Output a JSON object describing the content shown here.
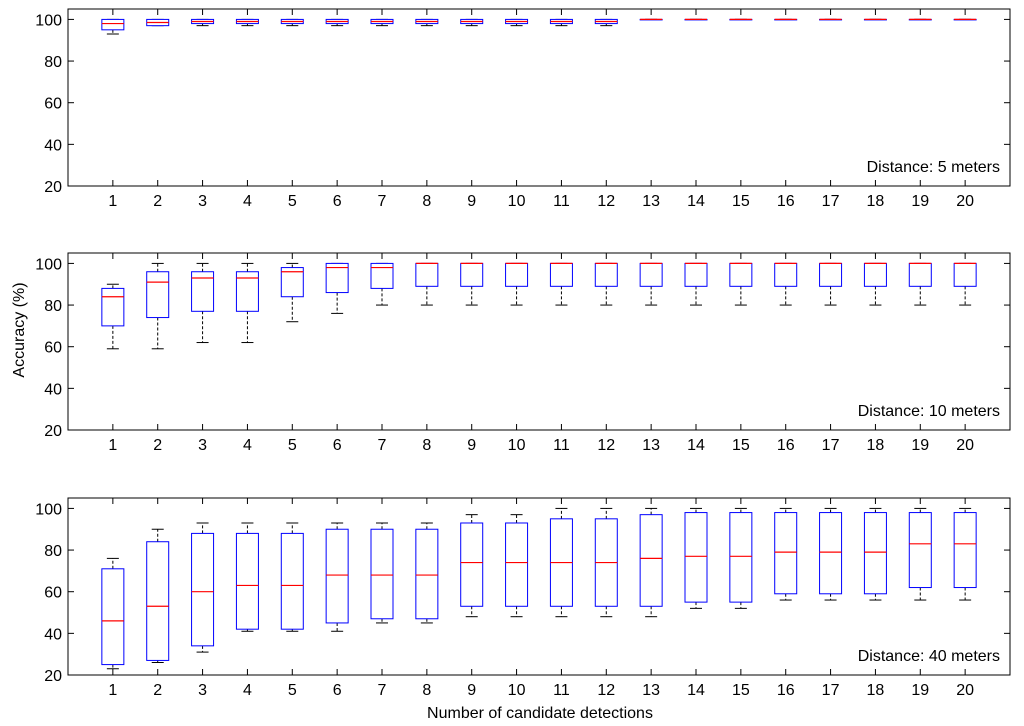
{
  "figure": {
    "ylabel": "Accuracy (%)",
    "xlabel": "Number of candidate detections"
  },
  "colors": {
    "box": "#0000ff",
    "median": "#ff0000",
    "whisker": "#000000",
    "axis": "#000000"
  },
  "chart_data": [
    {
      "type": "box",
      "annotation": "Distance: 5 meters",
      "categories": [
        "1",
        "2",
        "3",
        "4",
        "5",
        "6",
        "7",
        "8",
        "9",
        "10",
        "11",
        "12",
        "13",
        "14",
        "15",
        "16",
        "17",
        "18",
        "19",
        "20"
      ],
      "ylim": [
        20,
        105
      ],
      "yticks": [
        "20",
        "40",
        "60",
        "80",
        "100"
      ],
      "grid": false,
      "boxes": [
        {
          "min": 93,
          "q1": 95,
          "median": 98,
          "q3": 100,
          "max": 100
        },
        {
          "min": 97,
          "q1": 97,
          "median": 98.5,
          "q3": 100,
          "max": 100
        },
        {
          "min": 97,
          "q1": 98,
          "median": 99,
          "q3": 100,
          "max": 100
        },
        {
          "min": 97,
          "q1": 98,
          "median": 99,
          "q3": 100,
          "max": 100
        },
        {
          "min": 97,
          "q1": 98,
          "median": 99,
          "q3": 100,
          "max": 100
        },
        {
          "min": 97,
          "q1": 98,
          "median": 99,
          "q3": 100,
          "max": 100
        },
        {
          "min": 97,
          "q1": 98,
          "median": 99,
          "q3": 100,
          "max": 100
        },
        {
          "min": 97,
          "q1": 98,
          "median": 99,
          "q3": 100,
          "max": 100
        },
        {
          "min": 97,
          "q1": 98,
          "median": 99,
          "q3": 100,
          "max": 100
        },
        {
          "min": 97,
          "q1": 98,
          "median": 99,
          "q3": 100,
          "max": 100
        },
        {
          "min": 97,
          "q1": 98,
          "median": 99,
          "q3": 100,
          "max": 100
        },
        {
          "min": 97,
          "q1": 98,
          "median": 99,
          "q3": 100,
          "max": 100
        },
        {
          "min": 100,
          "q1": 100,
          "median": 100,
          "q3": 100,
          "max": 100
        },
        {
          "min": 100,
          "q1": 100,
          "median": 100,
          "q3": 100,
          "max": 100
        },
        {
          "min": 100,
          "q1": 100,
          "median": 100,
          "q3": 100,
          "max": 100
        },
        {
          "min": 100,
          "q1": 100,
          "median": 100,
          "q3": 100,
          "max": 100
        },
        {
          "min": 100,
          "q1": 100,
          "median": 100,
          "q3": 100,
          "max": 100
        },
        {
          "min": 100,
          "q1": 100,
          "median": 100,
          "q3": 100,
          "max": 100
        },
        {
          "min": 100,
          "q1": 100,
          "median": 100,
          "q3": 100,
          "max": 100
        },
        {
          "min": 100,
          "q1": 100,
          "median": 100,
          "q3": 100,
          "max": 100
        }
      ]
    },
    {
      "type": "box",
      "annotation": "Distance: 10 meters",
      "categories": [
        "1",
        "2",
        "3",
        "4",
        "5",
        "6",
        "7",
        "8",
        "9",
        "10",
        "11",
        "12",
        "13",
        "14",
        "15",
        "16",
        "17",
        "18",
        "19",
        "20"
      ],
      "ylim": [
        20,
        105
      ],
      "yticks": [
        "20",
        "40",
        "60",
        "80",
        "100"
      ],
      "grid": false,
      "boxes": [
        {
          "min": 59,
          "q1": 70,
          "median": 84,
          "q3": 88,
          "max": 90
        },
        {
          "min": 59,
          "q1": 74,
          "median": 91,
          "q3": 96,
          "max": 100
        },
        {
          "min": 62,
          "q1": 77,
          "median": 93,
          "q3": 96,
          "max": 100
        },
        {
          "min": 62,
          "q1": 77,
          "median": 93,
          "q3": 96,
          "max": 100
        },
        {
          "min": 72,
          "q1": 84,
          "median": 96,
          "q3": 98,
          "max": 100
        },
        {
          "min": 76,
          "q1": 86,
          "median": 98,
          "q3": 100,
          "max": 100
        },
        {
          "min": 80,
          "q1": 88,
          "median": 98,
          "q3": 100,
          "max": 100
        },
        {
          "min": 80,
          "q1": 89,
          "median": 100,
          "q3": 100,
          "max": 100
        },
        {
          "min": 80,
          "q1": 89,
          "median": 100,
          "q3": 100,
          "max": 100
        },
        {
          "min": 80,
          "q1": 89,
          "median": 100,
          "q3": 100,
          "max": 100
        },
        {
          "min": 80,
          "q1": 89,
          "median": 100,
          "q3": 100,
          "max": 100
        },
        {
          "min": 80,
          "q1": 89,
          "median": 100,
          "q3": 100,
          "max": 100
        },
        {
          "min": 80,
          "q1": 89,
          "median": 100,
          "q3": 100,
          "max": 100
        },
        {
          "min": 80,
          "q1": 89,
          "median": 100,
          "q3": 100,
          "max": 100
        },
        {
          "min": 80,
          "q1": 89,
          "median": 100,
          "q3": 100,
          "max": 100
        },
        {
          "min": 80,
          "q1": 89,
          "median": 100,
          "q3": 100,
          "max": 100
        },
        {
          "min": 80,
          "q1": 89,
          "median": 100,
          "q3": 100,
          "max": 100
        },
        {
          "min": 80,
          "q1": 89,
          "median": 100,
          "q3": 100,
          "max": 100
        },
        {
          "min": 80,
          "q1": 89,
          "median": 100,
          "q3": 100,
          "max": 100
        },
        {
          "min": 80,
          "q1": 89,
          "median": 100,
          "q3": 100,
          "max": 100
        }
      ]
    },
    {
      "type": "box",
      "annotation": "Distance: 40 meters",
      "categories": [
        "1",
        "2",
        "3",
        "4",
        "5",
        "6",
        "7",
        "8",
        "9",
        "10",
        "11",
        "12",
        "13",
        "14",
        "15",
        "16",
        "17",
        "18",
        "19",
        "20"
      ],
      "ylim": [
        20,
        105
      ],
      "yticks": [
        "20",
        "40",
        "60",
        "80",
        "100"
      ],
      "grid": false,
      "boxes": [
        {
          "min": 23,
          "q1": 25,
          "median": 46,
          "q3": 71,
          "max": 76
        },
        {
          "min": 26,
          "q1": 27,
          "median": 53,
          "q3": 84,
          "max": 90
        },
        {
          "min": 31,
          "q1": 34,
          "median": 60,
          "q3": 88,
          "max": 93
        },
        {
          "min": 41,
          "q1": 42,
          "median": 63,
          "q3": 88,
          "max": 93
        },
        {
          "min": 41,
          "q1": 42,
          "median": 63,
          "q3": 88,
          "max": 93
        },
        {
          "min": 41,
          "q1": 45,
          "median": 68,
          "q3": 90,
          "max": 93
        },
        {
          "min": 45,
          "q1": 47,
          "median": 68,
          "q3": 90,
          "max": 93
        },
        {
          "min": 45,
          "q1": 47,
          "median": 68,
          "q3": 90,
          "max": 93
        },
        {
          "min": 48,
          "q1": 53,
          "median": 74,
          "q3": 93,
          "max": 97
        },
        {
          "min": 48,
          "q1": 53,
          "median": 74,
          "q3": 93,
          "max": 97
        },
        {
          "min": 48,
          "q1": 53,
          "median": 74,
          "q3": 95,
          "max": 100
        },
        {
          "min": 48,
          "q1": 53,
          "median": 74,
          "q3": 95,
          "max": 100
        },
        {
          "min": 48,
          "q1": 53,
          "median": 76,
          "q3": 97,
          "max": 100
        },
        {
          "min": 52,
          "q1": 55,
          "median": 77,
          "q3": 98,
          "max": 100
        },
        {
          "min": 52,
          "q1": 55,
          "median": 77,
          "q3": 98,
          "max": 100
        },
        {
          "min": 56,
          "q1": 59,
          "median": 79,
          "q3": 98,
          "max": 100
        },
        {
          "min": 56,
          "q1": 59,
          "median": 79,
          "q3": 98,
          "max": 100
        },
        {
          "min": 56,
          "q1": 59,
          "median": 79,
          "q3": 98,
          "max": 100
        },
        {
          "min": 56,
          "q1": 62,
          "median": 83,
          "q3": 98,
          "max": 100
        },
        {
          "min": 56,
          "q1": 62,
          "median": 83,
          "q3": 98,
          "max": 100
        }
      ]
    }
  ]
}
